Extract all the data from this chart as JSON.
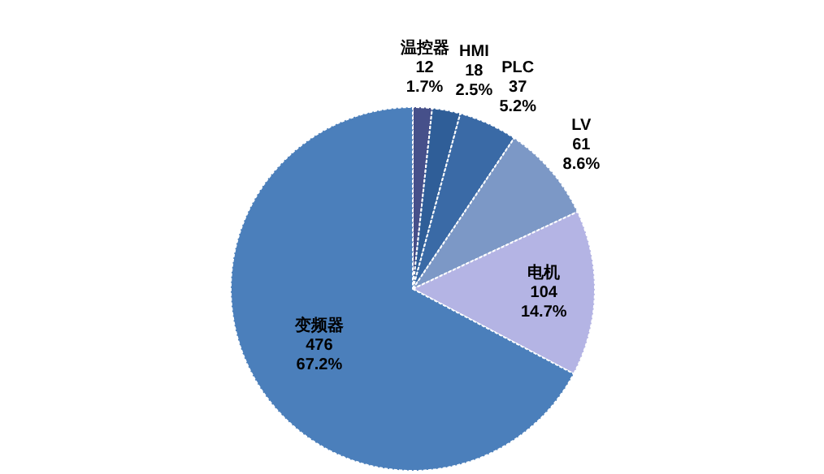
{
  "chart_data": {
    "type": "pie",
    "categories": [
      "温控器",
      "HMI",
      "PLC",
      "LV",
      "电机",
      "变频器"
    ],
    "values": [
      1.7,
      2.5,
      5.2,
      8.6,
      14.7,
      67.2
    ],
    "value_labels": [
      "12\n1.7%",
      "18\n2.5%",
      "37\n5.2%",
      "61\n8.6%",
      "104\n14.7%",
      "476\n67.2%"
    ],
    "colors": [
      "#46508a",
      "#2f5e98",
      "#3a6aa6",
      "#7c98c6",
      "#b4b4e4",
      "#4b7fbb"
    ]
  }
}
